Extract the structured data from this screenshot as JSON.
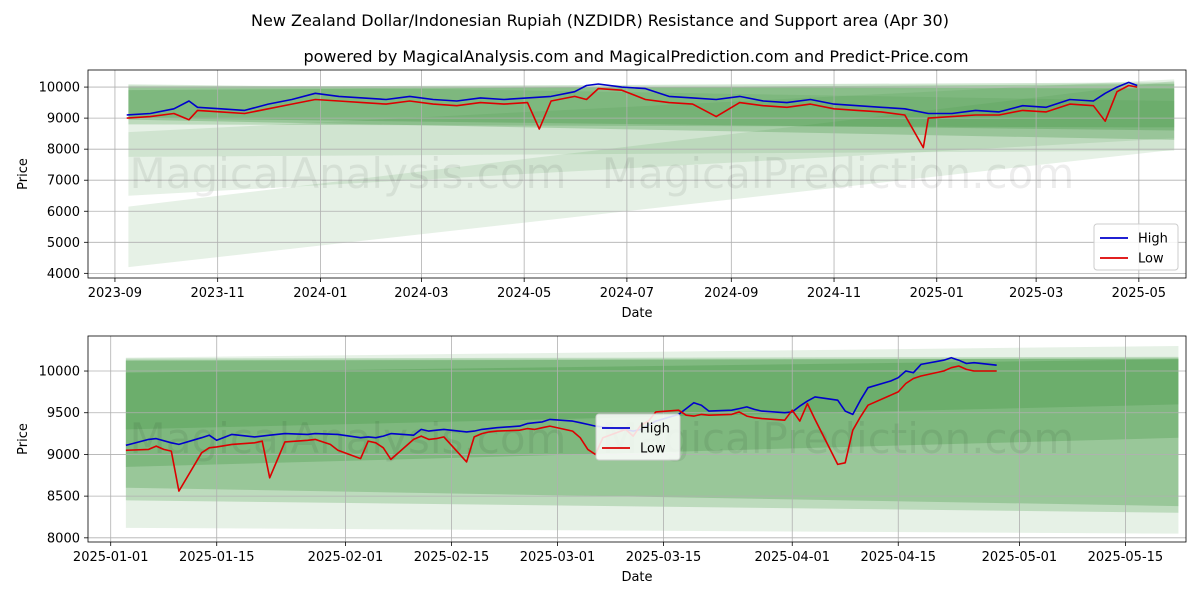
{
  "figure": {
    "title": "New Zealand Dollar/Indonesian Rupiah (NZDIDR) Resistance and Support area (Apr 30)",
    "subtitle": "powered by MagicalAnalysis.com and MagicalPrediction.com and Predict-Price.com",
    "watermark_left": "MagicalAnalysis.com",
    "watermark_right": "MagicalPrediction.com"
  },
  "colors": {
    "high": "#0000cc",
    "low": "#dd0000",
    "band": "#2e8b2e",
    "grid": "#b0b0b0"
  },
  "chart_data": [
    {
      "type": "line",
      "xlabel": "Date",
      "ylabel": "Price",
      "xlim": [
        "2023-08-16",
        "2025-05-29"
      ],
      "ylim": [
        3850,
        10550
      ],
      "x_ticks": [
        "2023-09",
        "2023-11",
        "2024-01",
        "2024-03",
        "2024-05",
        "2024-07",
        "2024-09",
        "2024-11",
        "2025-01",
        "2025-03",
        "2025-05"
      ],
      "y_ticks": [
        4000,
        5000,
        6000,
        7000,
        8000,
        9000,
        10000
      ],
      "grid": true,
      "legend": "lower-right",
      "series": [
        {
          "name": "High",
          "x": [
            "2023-09-08",
            "2023-09-22",
            "2023-10-06",
            "2023-10-15",
            "2023-10-20",
            "2023-11-03",
            "2023-11-17",
            "2023-12-01",
            "2023-12-15",
            "2023-12-29",
            "2024-01-12",
            "2024-01-26",
            "2024-02-09",
            "2024-02-23",
            "2024-03-08",
            "2024-03-22",
            "2024-04-05",
            "2024-04-19",
            "2024-05-03",
            "2024-05-17",
            "2024-05-31",
            "2024-06-07",
            "2024-06-14",
            "2024-06-28",
            "2024-07-12",
            "2024-07-26",
            "2024-08-09",
            "2024-08-23",
            "2024-09-06",
            "2024-09-20",
            "2024-10-04",
            "2024-10-18",
            "2024-11-01",
            "2024-11-15",
            "2024-11-29",
            "2024-12-13",
            "2024-12-27",
            "2025-01-10",
            "2025-01-24",
            "2025-02-07",
            "2025-02-21",
            "2025-03-07",
            "2025-03-21",
            "2025-04-04",
            "2025-04-11",
            "2025-04-18",
            "2025-04-25",
            "2025-04-30"
          ],
          "values": [
            9100,
            9150,
            9300,
            9550,
            9350,
            9300,
            9250,
            9450,
            9600,
            9800,
            9700,
            9650,
            9600,
            9700,
            9600,
            9550,
            9650,
            9600,
            9650,
            9700,
            9850,
            10050,
            10100,
            10000,
            9950,
            9700,
            9650,
            9600,
            9700,
            9550,
            9500,
            9600,
            9450,
            9400,
            9350,
            9300,
            9150,
            9150,
            9250,
            9200,
            9400,
            9350,
            9600,
            9550,
            9800,
            10000,
            10150,
            10050
          ]
        },
        {
          "name": "Low",
          "x": [
            "2023-09-08",
            "2023-09-22",
            "2023-10-06",
            "2023-10-15",
            "2023-10-20",
            "2023-11-03",
            "2023-11-17",
            "2023-12-01",
            "2023-12-15",
            "2023-12-29",
            "2024-01-12",
            "2024-01-26",
            "2024-02-09",
            "2024-02-23",
            "2024-03-08",
            "2024-03-22",
            "2024-04-05",
            "2024-04-19",
            "2024-05-03",
            "2024-05-10",
            "2024-05-17",
            "2024-05-31",
            "2024-06-07",
            "2024-06-14",
            "2024-06-28",
            "2024-07-12",
            "2024-07-26",
            "2024-08-09",
            "2024-08-23",
            "2024-09-06",
            "2024-09-20",
            "2024-10-04",
            "2024-10-18",
            "2024-11-01",
            "2024-11-15",
            "2024-11-29",
            "2024-12-13",
            "2024-12-24",
            "2024-12-27",
            "2025-01-10",
            "2025-01-24",
            "2025-02-07",
            "2025-02-21",
            "2025-03-07",
            "2025-03-21",
            "2025-04-04",
            "2025-04-11",
            "2025-04-18",
            "2025-04-25",
            "2025-04-30"
          ],
          "values": [
            9000,
            9050,
            9150,
            8950,
            9250,
            9200,
            9150,
            9300,
            9450,
            9600,
            9550,
            9500,
            9450,
            9550,
            9450,
            9400,
            9500,
            9450,
            9500,
            8650,
            9550,
            9700,
            9600,
            9950,
            9900,
            9600,
            9500,
            9450,
            9050,
            9500,
            9400,
            9350,
            9450,
            9300,
            9250,
            9200,
            9100,
            8050,
            9000,
            9050,
            9100,
            9100,
            9250,
            9200,
            9450,
            9400,
            8900,
            9850,
            10050,
            10000
          ]
        }
      ]
    },
    {
      "type": "line",
      "xlabel": "Date",
      "ylabel": "Price",
      "xlim": [
        "2024-12-29",
        "2025-05-23"
      ],
      "ylim": [
        7950,
        10420
      ],
      "x_ticks": [
        "2025-01-01",
        "2025-01-15",
        "2025-02-01",
        "2025-02-15",
        "2025-03-01",
        "2025-03-15",
        "2025-04-01",
        "2025-04-15",
        "2025-05-01",
        "2025-05-15"
      ],
      "y_ticks": [
        8000,
        8500,
        9000,
        9500,
        10000
      ],
      "grid": true,
      "legend": "center",
      "series": [
        {
          "name": "High",
          "x": [
            "2025-01-03",
            "2025-01-06",
            "2025-01-07",
            "2025-01-09",
            "2025-01-10",
            "2025-01-13",
            "2025-01-14",
            "2025-01-15",
            "2025-01-17",
            "2025-01-20",
            "2025-01-21",
            "2025-01-22",
            "2025-01-24",
            "2025-01-27",
            "2025-01-28",
            "2025-01-31",
            "2025-02-03",
            "2025-02-04",
            "2025-02-05",
            "2025-02-06",
            "2025-02-07",
            "2025-02-10",
            "2025-02-11",
            "2025-02-12",
            "2025-02-13",
            "2025-02-14",
            "2025-02-17",
            "2025-02-18",
            "2025-02-19",
            "2025-02-20",
            "2025-02-21",
            "2025-02-24",
            "2025-02-25",
            "2025-02-26",
            "2025-02-27",
            "2025-02-28",
            "2025-03-03",
            "2025-03-04",
            "2025-03-05",
            "2025-03-06",
            "2025-03-07",
            "2025-03-10",
            "2025-03-11",
            "2025-03-12",
            "2025-03-13",
            "2025-03-14",
            "2025-03-17",
            "2025-03-18",
            "2025-03-19",
            "2025-03-20",
            "2025-03-21",
            "2025-03-24",
            "2025-03-25",
            "2025-03-26",
            "2025-03-27",
            "2025-03-28",
            "2025-03-31",
            "2025-04-01",
            "2025-04-02",
            "2025-04-03",
            "2025-04-04",
            "2025-04-07",
            "2025-04-08",
            "2025-04-09",
            "2025-04-10",
            "2025-04-11",
            "2025-04-14",
            "2025-04-15",
            "2025-04-16",
            "2025-04-17",
            "2025-04-18",
            "2025-04-21",
            "2025-04-22",
            "2025-04-23",
            "2025-04-24",
            "2025-04-25",
            "2025-04-28"
          ],
          "values": [
            9110,
            9180,
            9190,
            9140,
            9120,
            9200,
            9230,
            9170,
            9240,
            9210,
            9220,
            9230,
            9250,
            9240,
            9250,
            9240,
            9200,
            9210,
            9200,
            9220,
            9250,
            9230,
            9300,
            9280,
            9290,
            9300,
            9270,
            9280,
            9300,
            9310,
            9320,
            9340,
            9370,
            9380,
            9390,
            9420,
            9400,
            9380,
            9360,
            9340,
            9330,
            9300,
            9280,
            9300,
            9350,
            9400,
            9480,
            9550,
            9620,
            9590,
            9520,
            9530,
            9550,
            9570,
            9540,
            9520,
            9500,
            9510,
            9580,
            9640,
            9690,
            9650,
            9520,
            9480,
            9650,
            9800,
            9880,
            9920,
            10000,
            9980,
            10080,
            10130,
            10160,
            10130,
            10090,
            10100,
            10070
          ]
        },
        {
          "name": "Low",
          "x": [
            "2025-01-03",
            "2025-01-06",
            "2025-01-07",
            "2025-01-08",
            "2025-01-09",
            "2025-01-10",
            "2025-01-13",
            "2025-01-14",
            "2025-01-15",
            "2025-01-17",
            "2025-01-20",
            "2025-01-21",
            "2025-01-22",
            "2025-01-24",
            "2025-01-27",
            "2025-01-28",
            "2025-01-29",
            "2025-01-30",
            "2025-01-31",
            "2025-02-03",
            "2025-02-04",
            "2025-02-05",
            "2025-02-06",
            "2025-02-07",
            "2025-02-10",
            "2025-02-11",
            "2025-02-12",
            "2025-02-13",
            "2025-02-14",
            "2025-02-17",
            "2025-02-18",
            "2025-02-19",
            "2025-02-20",
            "2025-02-21",
            "2025-02-24",
            "2025-02-25",
            "2025-02-26",
            "2025-02-27",
            "2025-02-28",
            "2025-03-03",
            "2025-03-04",
            "2025-03-05",
            "2025-03-06",
            "2025-03-07",
            "2025-03-10",
            "2025-03-11",
            "2025-03-12",
            "2025-03-13",
            "2025-03-14",
            "2025-03-17",
            "2025-03-18",
            "2025-03-19",
            "2025-03-20",
            "2025-03-21",
            "2025-03-24",
            "2025-03-25",
            "2025-03-26",
            "2025-03-27",
            "2025-03-28",
            "2025-03-31",
            "2025-04-01",
            "2025-04-02",
            "2025-04-03",
            "2025-04-04",
            "2025-04-07",
            "2025-04-08",
            "2025-04-09",
            "2025-04-10",
            "2025-04-11",
            "2025-04-14",
            "2025-04-15",
            "2025-04-16",
            "2025-04-17",
            "2025-04-18",
            "2025-04-21",
            "2025-04-22",
            "2025-04-23",
            "2025-04-24",
            "2025-04-25",
            "2025-04-28"
          ],
          "values": [
            9050,
            9060,
            9100,
            9060,
            9040,
            8560,
            9020,
            9080,
            9090,
            9120,
            9140,
            9160,
            8720,
            9150,
            9170,
            9180,
            9150,
            9120,
            9050,
            8950,
            9160,
            9140,
            9080,
            8940,
            9180,
            9220,
            9180,
            9190,
            9210,
            8910,
            9210,
            9250,
            9270,
            9280,
            9290,
            9310,
            9300,
            9320,
            9340,
            9280,
            9200,
            9060,
            9000,
            9200,
            9300,
            9220,
            9350,
            9400,
            9510,
            9530,
            9470,
            9460,
            9480,
            9470,
            9480,
            9510,
            9460,
            9440,
            9430,
            9410,
            9530,
            9400,
            9610,
            9420,
            8880,
            8900,
            9290,
            9450,
            9590,
            9710,
            9750,
            9850,
            9910,
            9940,
            10000,
            10040,
            10060,
            10020,
            10000,
            10000
          ]
        }
      ]
    }
  ]
}
